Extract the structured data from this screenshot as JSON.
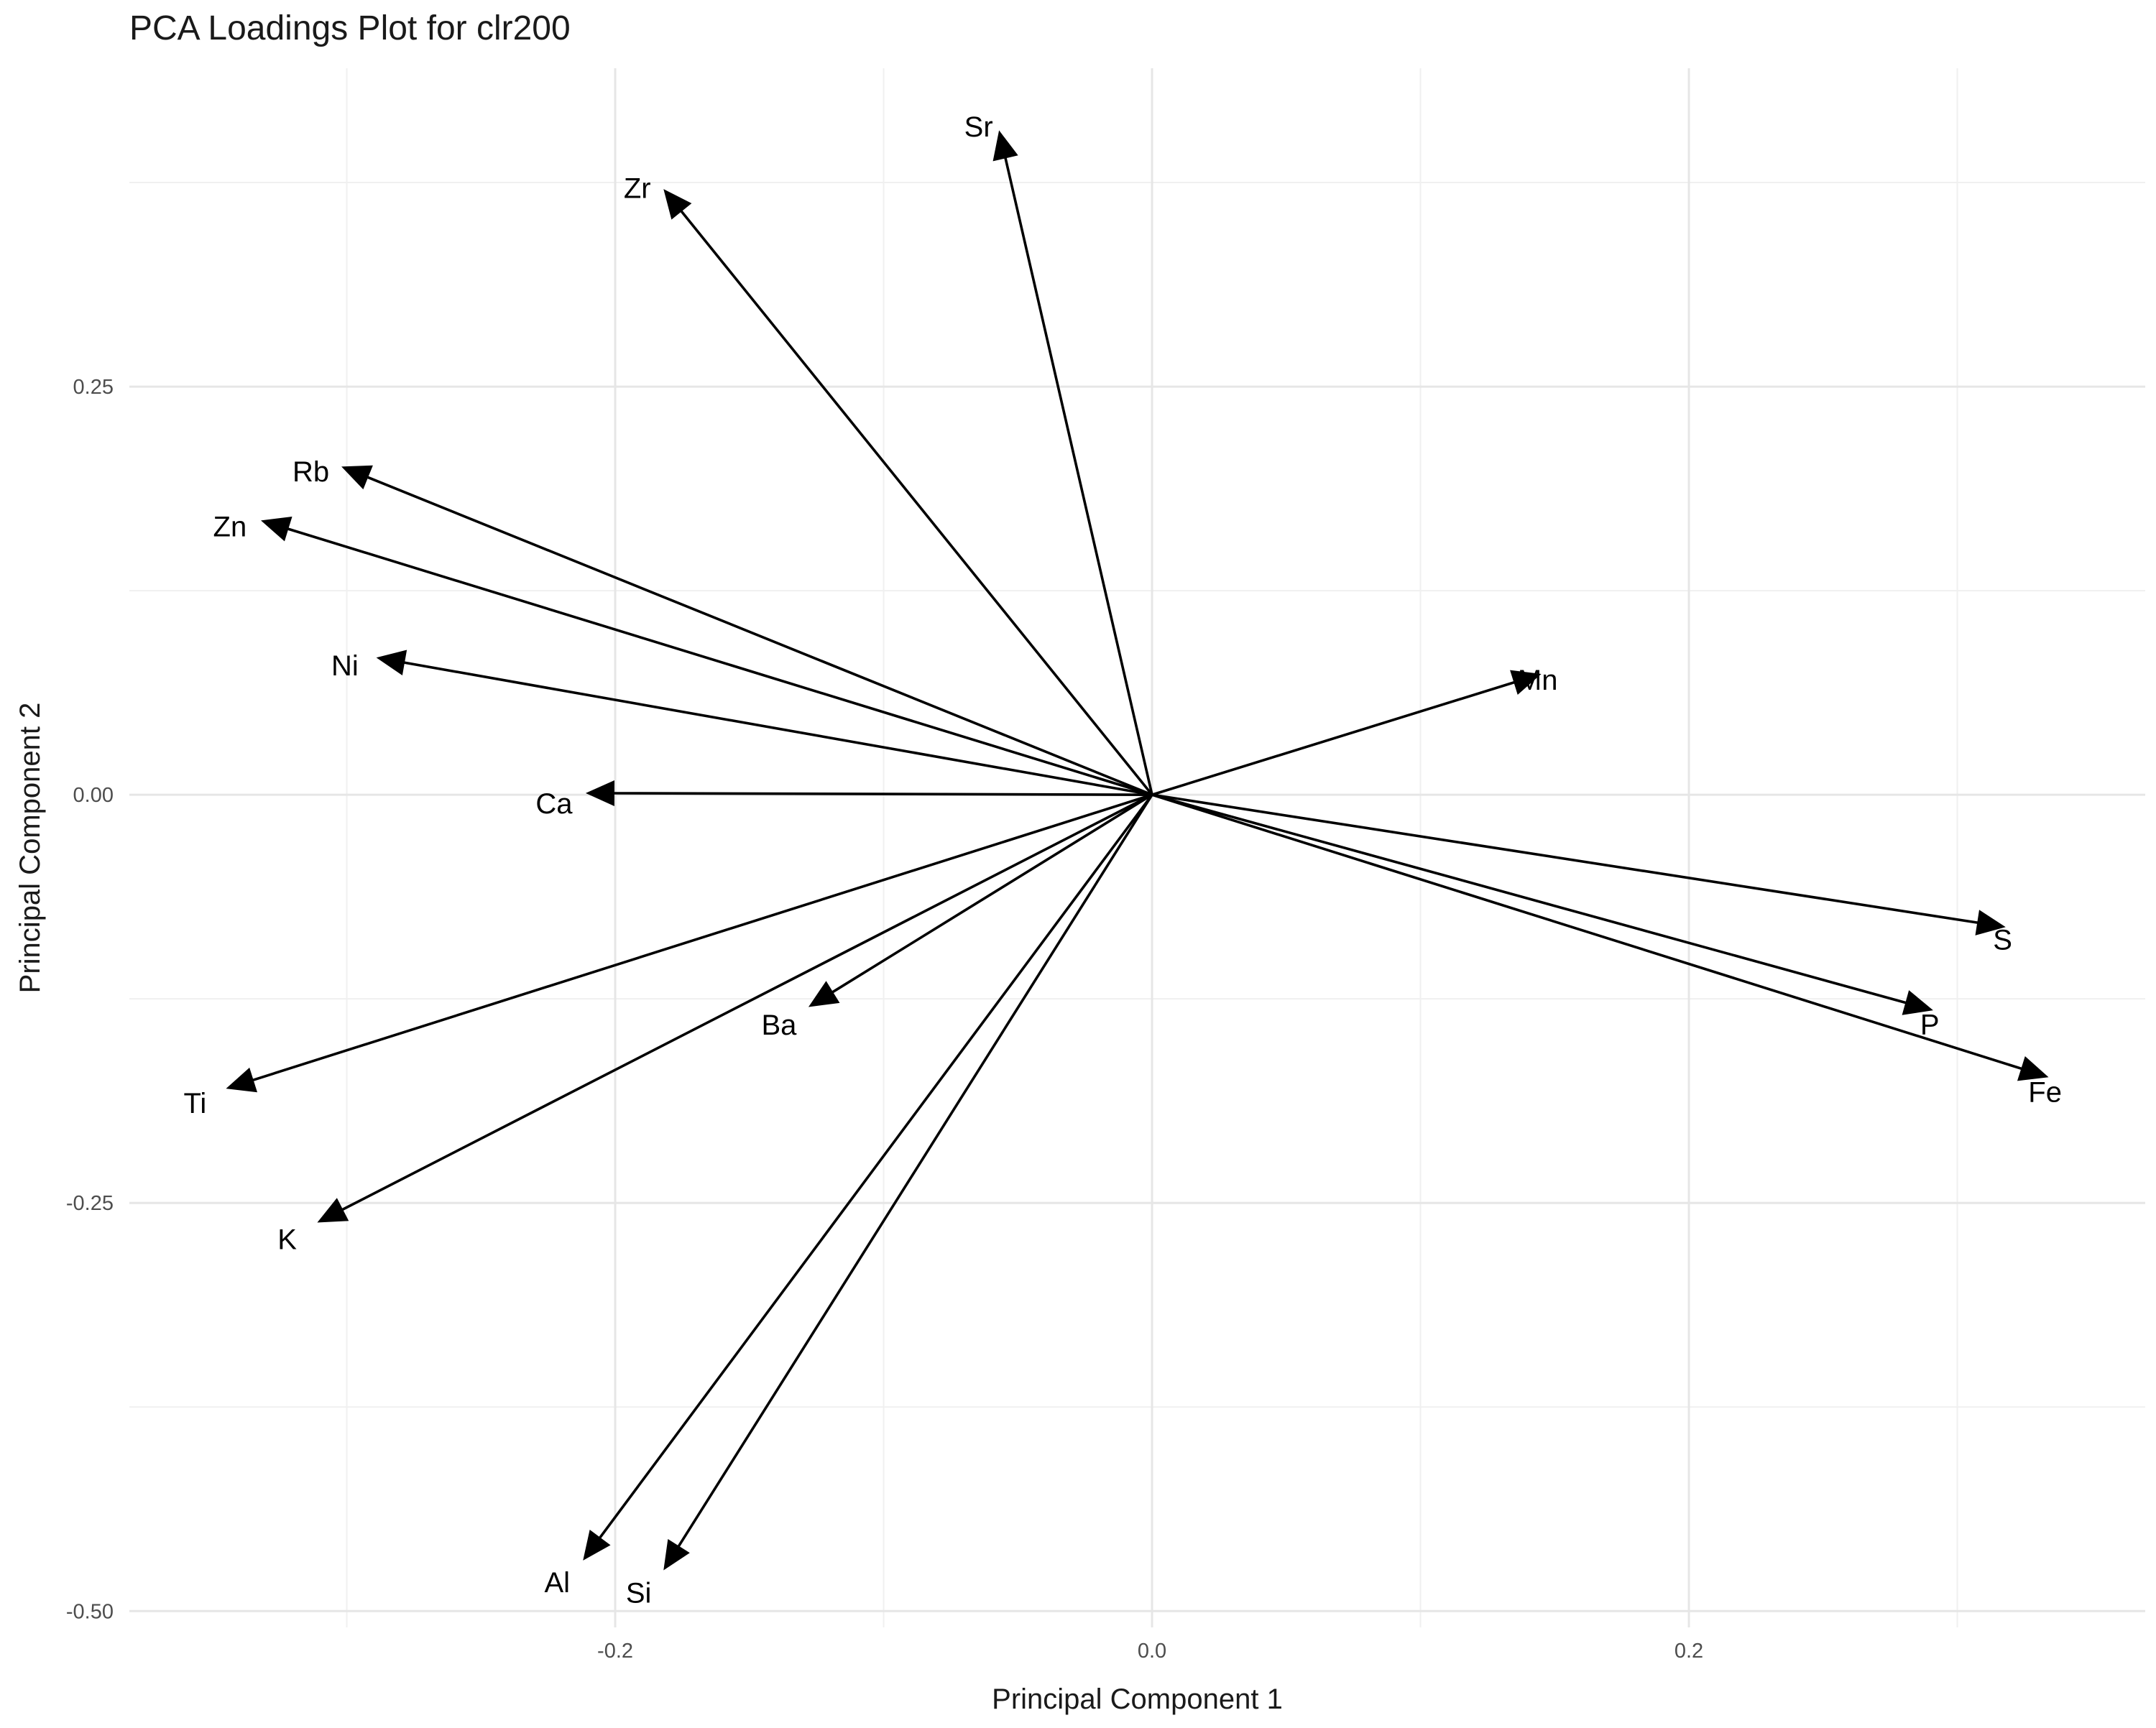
{
  "chart_data": {
    "type": "scatter",
    "subtype": "pca-loadings-biplot",
    "title": "PCA Loadings Plot for clr200",
    "xlabel": "Principal Component 1",
    "ylabel": "Principal Component 2",
    "xlim": [
      -0.381,
      0.37
    ],
    "ylim": [
      -0.51,
      0.445
    ],
    "x_ticks": [
      -0.2,
      0.0,
      0.2
    ],
    "x_tick_labels": [
      "-0.2",
      "0.0",
      "0.2"
    ],
    "y_ticks": [
      -0.5,
      -0.25,
      0.0,
      0.25
    ],
    "y_tick_labels": [
      "-0.50",
      "-0.25",
      "0.00",
      "0.25"
    ],
    "grid": true,
    "legend": "none",
    "arrow_origin": [
      0,
      0
    ],
    "loadings": [
      {
        "name": "Sr",
        "x": -0.057,
        "y": 0.407
      },
      {
        "name": "Zr",
        "x": -0.182,
        "y": 0.371
      },
      {
        "name": "Rb",
        "x": -0.302,
        "y": 0.201
      },
      {
        "name": "Zn",
        "x": -0.332,
        "y": 0.168
      },
      {
        "name": "Ni",
        "x": -0.289,
        "y": 0.084
      },
      {
        "name": "Ca",
        "x": -0.211,
        "y": 0.001
      },
      {
        "name": "Mn",
        "x": 0.145,
        "y": 0.074
      },
      {
        "name": "S",
        "x": 0.318,
        "y": -0.081
      },
      {
        "name": "P",
        "x": 0.291,
        "y": -0.132
      },
      {
        "name": "Fe",
        "x": 0.334,
        "y": -0.173
      },
      {
        "name": "Ba",
        "x": -0.128,
        "y": -0.13
      },
      {
        "name": "Ti",
        "x": -0.345,
        "y": -0.18
      },
      {
        "name": "K",
        "x": -0.311,
        "y": -0.262
      },
      {
        "name": "Al",
        "x": -0.212,
        "y": -0.469
      },
      {
        "name": "Si",
        "x": -0.182,
        "y": -0.475
      }
    ]
  }
}
